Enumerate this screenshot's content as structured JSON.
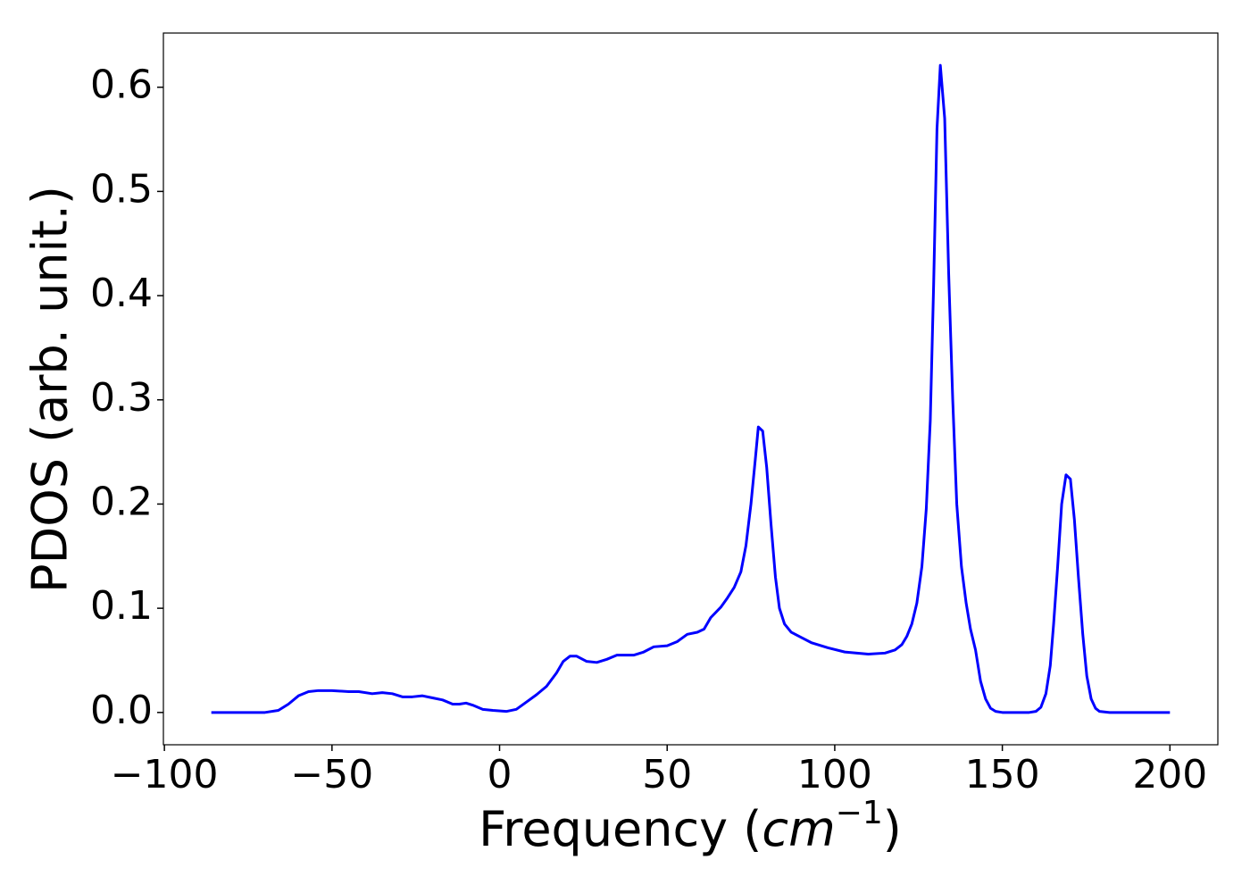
{
  "chart_data": {
    "type": "line",
    "x_label": [
      "Frequency (",
      "cm",
      "−1",
      ")"
    ],
    "y_label": "PDOS (arb. unit.)",
    "xlim": [
      -100.3,
      214.3
    ],
    "ylim": [
      -0.031,
      0.652
    ],
    "xticks": [
      {
        "value": -100,
        "label": "−100"
      },
      {
        "value": -50,
        "label": "−50"
      },
      0,
      50,
      100,
      150,
      200
    ],
    "yticks": [
      {
        "value": 0,
        "label": "0.0"
      },
      0.1,
      0.2,
      0.3,
      0.4,
      0.5,
      0.6
    ],
    "grid": false,
    "x": [
      -86,
      -70,
      -66,
      -63,
      -60,
      -57,
      -54,
      -50,
      -45,
      -42,
      -38,
      -35,
      -32,
      -29,
      -26,
      -23,
      -20,
      -17,
      -14,
      -12,
      -10,
      -8,
      -5,
      -2,
      2,
      5,
      8,
      11,
      14,
      17,
      19,
      21,
      23,
      26,
      29,
      32,
      35,
      40,
      43,
      46,
      50,
      53,
      56,
      59,
      61,
      63,
      66,
      68,
      70,
      72,
      73.5,
      75,
      76.3,
      77.2,
      78.5,
      79.7,
      81,
      82.3,
      83.5,
      85,
      87,
      90,
      93,
      98,
      103,
      110,
      115,
      118,
      120,
      121.5,
      123,
      124.5,
      126,
      127.3,
      128.5,
      129.5,
      130.5,
      131.5,
      132.8,
      134,
      135.2,
      136.4,
      137.8,
      139.2,
      140.5,
      142,
      143.5,
      145,
      146.5,
      148,
      150,
      158,
      160,
      161.5,
      163,
      164.3,
      165.3,
      166.5,
      167.7,
      169,
      170.3,
      171.5,
      172.7,
      174,
      175.2,
      176.5,
      177.8,
      179,
      182,
      200
    ],
    "series": [
      {
        "color": "#0000ff",
        "values": [
          0,
          0,
          0.002,
          0.008,
          0.016,
          0.02,
          0.021,
          0.021,
          0.02,
          0.02,
          0.018,
          0.019,
          0.018,
          0.015,
          0.015,
          0.016,
          0.014,
          0.012,
          0.008,
          0.008,
          0.009,
          0.007,
          0.003,
          0.002,
          0.001,
          0.003,
          0.01,
          0.017,
          0.025,
          0.038,
          0.049,
          0.054,
          0.054,
          0.049,
          0.048,
          0.051,
          0.055,
          0.055,
          0.058,
          0.063,
          0.064,
          0.068,
          0.075,
          0.077,
          0.08,
          0.091,
          0.101,
          0.11,
          0.12,
          0.135,
          0.16,
          0.2,
          0.243,
          0.274,
          0.27,
          0.235,
          0.18,
          0.13,
          0.1,
          0.085,
          0.077,
          0.072,
          0.067,
          0.062,
          0.058,
          0.056,
          0.057,
          0.06,
          0.065,
          0.073,
          0.085,
          0.105,
          0.14,
          0.195,
          0.28,
          0.41,
          0.56,
          0.621,
          0.57,
          0.42,
          0.3,
          0.2,
          0.14,
          0.105,
          0.08,
          0.06,
          0.03,
          0.013,
          0.004,
          0.001,
          0,
          0,
          0.001,
          0.005,
          0.018,
          0.045,
          0.085,
          0.14,
          0.2,
          0.228,
          0.224,
          0.185,
          0.13,
          0.075,
          0.035,
          0.013,
          0.004,
          0.001,
          0,
          0
        ]
      }
    ]
  }
}
